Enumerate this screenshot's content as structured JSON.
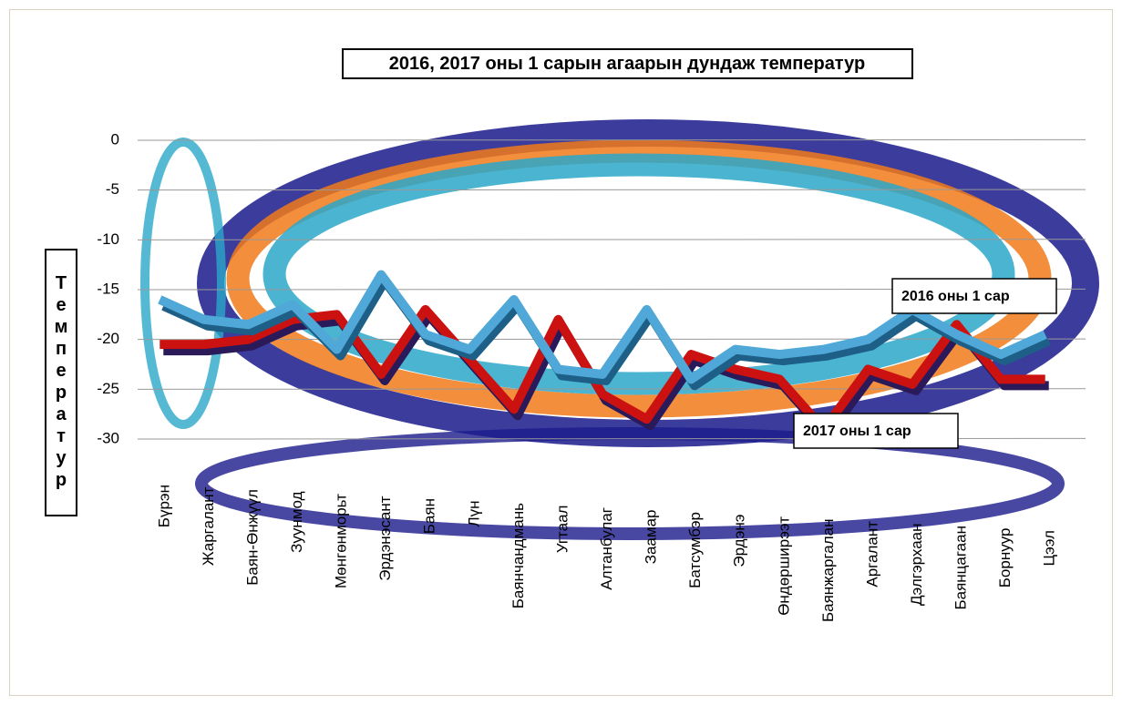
{
  "chart_data": {
    "type": "line",
    "title": "2016, 2017 оны 1 сарын агаарын дундаж температур",
    "y_label": "Температур",
    "categories": [
      "Бүрэн",
      "Жаргалант",
      "Баян-Өнжүүл",
      "Зуунмод",
      "Мөнгөнморьт",
      "Эрдэнэсант",
      "Баян",
      "Лүн",
      "Баянчандмань",
      "Угтаал",
      "Алтанбулаг",
      "Заамар",
      "Батсумбэр",
      "Эрдэнэ",
      "Өндөрширээт",
      "Баянжаргалан",
      "Аргалант",
      "Дэлгэрхаан",
      "Баянцагаан",
      "Борнуур",
      "Цээл"
    ],
    "series": [
      {
        "name": "2016  оны 1 сар",
        "color": "#4fa8d8",
        "values": [
          -16,
          -18,
          -18.5,
          -16.5,
          -21,
          -13.5,
          -19.5,
          -21,
          -16,
          -23,
          -23.5,
          -17,
          -24,
          -21,
          -21.5,
          -21,
          -20,
          -17,
          -19.5,
          -21.5,
          -19.5
        ]
      },
      {
        "name": "2017 оны 1 сар",
        "color": "#cc1111",
        "values": [
          -20.5,
          -20.5,
          -20,
          -18,
          -17.5,
          -23.5,
          -17,
          -22,
          -27,
          -18,
          -25.5,
          -28,
          -21.5,
          -23,
          -24,
          -29,
          -23,
          -24.5,
          -18.5,
          -24,
          -24
        ]
      }
    ],
    "ylim": [
      -30,
      0
    ],
    "yticks": [
      0,
      -5,
      -10,
      -15,
      -20,
      -25,
      -30
    ],
    "grid": true
  }
}
